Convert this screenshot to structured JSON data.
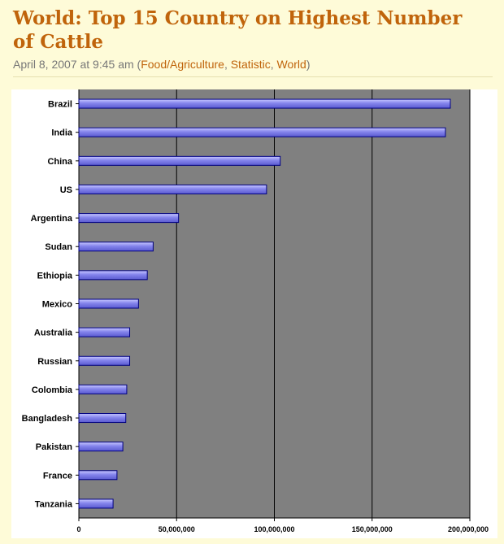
{
  "post": {
    "title": "World: Top 15 Country on Highest Number of Cattle",
    "date": "April 8, 2007 at 9:45 am",
    "open_paren": " (",
    "categories": [
      "Food/Agriculture",
      "Statistic",
      "World"
    ],
    "sep1": ", ",
    "sep2": ", ",
    "close_paren": ")"
  },
  "colors": {
    "title": "#c0640b",
    "link": "#c0640b",
    "page_bg": "#fefbd8",
    "plot_bg": "#808080",
    "bar_fill": "#8080e8",
    "bar_stroke": "#000080"
  },
  "chart_data": {
    "type": "bar",
    "orientation": "horizontal",
    "categories": [
      "Brazil",
      "India",
      "China",
      "US",
      "Argentina",
      "Sudan",
      "Ethiopia",
      "Mexico",
      "Australia",
      "Russian",
      "Colombia",
      "Bangladesh",
      "Pakistan",
      "France",
      "Tanzania"
    ],
    "values": [
      190000000,
      187500000,
      103000000,
      96000000,
      51000000,
      38000000,
      35000000,
      30500000,
      26000000,
      26000000,
      24500000,
      24000000,
      22500000,
      19500000,
      17500000
    ],
    "xlim": [
      0,
      200000000
    ],
    "xticks": [
      0,
      50000000,
      100000000,
      150000000,
      200000000
    ],
    "xtick_labels": [
      "0",
      "50,000,000",
      "100,000,000",
      "150,000,000",
      "200,000,000"
    ],
    "grid": "vertical",
    "legend": "none"
  }
}
